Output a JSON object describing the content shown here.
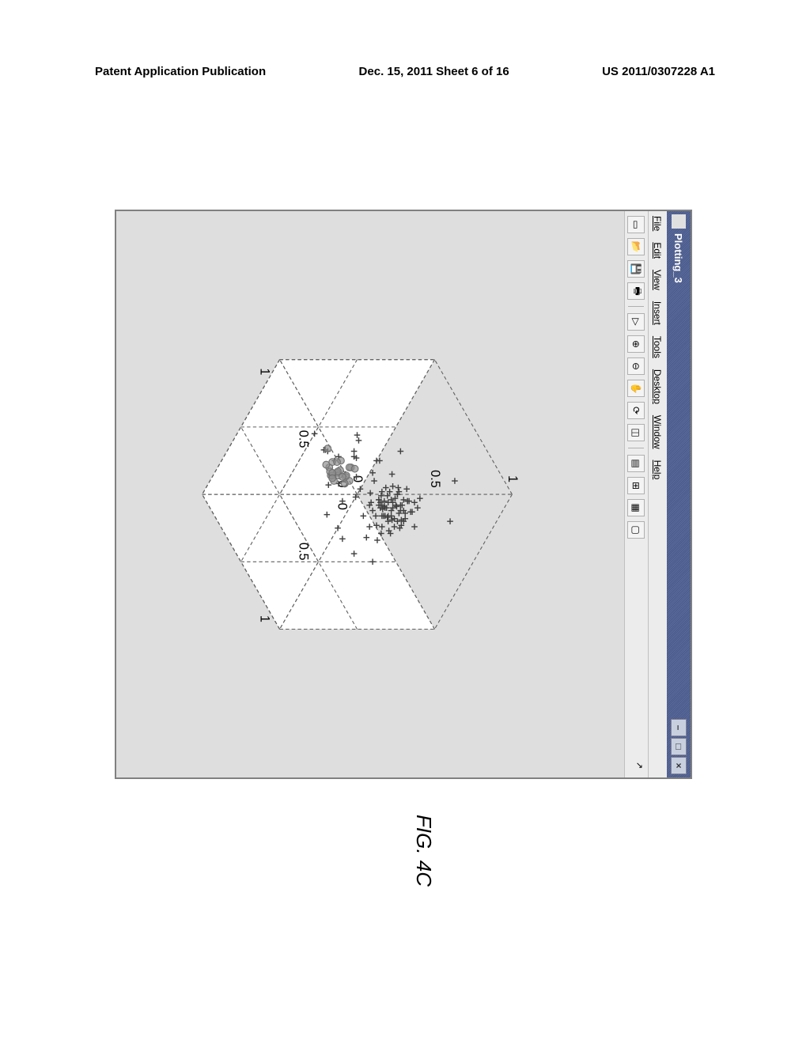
{
  "header": {
    "left": "Patent Application Publication",
    "center": "Dec. 15, 2011  Sheet 6 of 16",
    "right": "US 2011/0307228 A1"
  },
  "window": {
    "title": "Plotting_3",
    "menus": [
      "File",
      "Edit",
      "View",
      "Insert",
      "Tools",
      "Desktop",
      "Window",
      "Help"
    ],
    "win_buttons": {
      "min": "–",
      "max": "□",
      "close": "×"
    },
    "toolbar_icons": [
      {
        "name": "new-icon",
        "glyph": "▭"
      },
      {
        "name": "open-icon",
        "glyph": "📂"
      },
      {
        "name": "save-icon",
        "glyph": "💾"
      },
      {
        "name": "print-icon",
        "glyph": "🖶"
      },
      {
        "name": "pointer-icon",
        "glyph": "▷"
      },
      {
        "name": "zoom-in-icon",
        "glyph": "⊕"
      },
      {
        "name": "zoom-out-icon",
        "glyph": "⊖"
      },
      {
        "name": "pan-icon",
        "glyph": "✋"
      },
      {
        "name": "rotate-icon",
        "glyph": "⟳"
      },
      {
        "name": "datacursor-icon",
        "glyph": "◫"
      },
      {
        "name": "colorbar-icon",
        "glyph": "▤"
      },
      {
        "name": "legend-icon",
        "glyph": "⊞"
      },
      {
        "name": "axes-icon",
        "glyph": "▦"
      },
      {
        "name": "subplot-icon",
        "glyph": "▢"
      }
    ]
  },
  "plot": {
    "type": "scatter3d",
    "axes": {
      "x": {
        "lim": [
          0,
          1
        ],
        "ticks": [
          0,
          0.5,
          1
        ],
        "tick_labels": [
          "0",
          "0.5",
          "1"
        ]
      },
      "y": {
        "lim": [
          0,
          1
        ],
        "ticks": [
          0,
          0.5,
          1
        ],
        "tick_labels": [
          "0",
          "0.5",
          "1"
        ]
      },
      "z": {
        "lim": [
          0,
          1
        ],
        "ticks": [
          0,
          0.5,
          1
        ],
        "tick_labels": [
          "0",
          "0.5",
          "1"
        ]
      }
    },
    "grid_color": "#606060",
    "background_color": "#dedede",
    "face_color": "#ffffff",
    "series": [
      {
        "name": "crosses",
        "marker": "plus",
        "color": "#404040",
        "size": 7,
        "points": [
          [
            0.55,
            0.35,
            0.75
          ],
          [
            0.6,
            0.4,
            0.7
          ],
          [
            0.5,
            0.45,
            0.8
          ],
          [
            0.65,
            0.38,
            0.72
          ],
          [
            0.58,
            0.5,
            0.68
          ],
          [
            0.62,
            0.42,
            0.78
          ],
          [
            0.48,
            0.48,
            0.74
          ],
          [
            0.7,
            0.36,
            0.66
          ],
          [
            0.53,
            0.55,
            0.7
          ],
          [
            0.57,
            0.33,
            0.82
          ],
          [
            0.45,
            0.4,
            0.76
          ],
          [
            0.68,
            0.44,
            0.64
          ],
          [
            0.52,
            0.52,
            0.78
          ],
          [
            0.63,
            0.47,
            0.72
          ],
          [
            0.47,
            0.38,
            0.68
          ],
          [
            0.59,
            0.58,
            0.74
          ],
          [
            0.66,
            0.5,
            0.7
          ],
          [
            0.5,
            0.6,
            0.66
          ],
          [
            0.55,
            0.42,
            0.84
          ],
          [
            0.72,
            0.4,
            0.62
          ],
          [
            0.44,
            0.46,
            0.72
          ],
          [
            0.61,
            0.36,
            0.76
          ],
          [
            0.56,
            0.48,
            0.8
          ],
          [
            0.49,
            0.54,
            0.7
          ],
          [
            0.64,
            0.52,
            0.68
          ],
          [
            0.58,
            0.45,
            0.86
          ],
          [
            0.67,
            0.38,
            0.74
          ],
          [
            0.51,
            0.42,
            0.64
          ],
          [
            0.6,
            0.56,
            0.72
          ],
          [
            0.53,
            0.5,
            0.76
          ],
          [
            0.46,
            0.36,
            0.8
          ],
          [
            0.69,
            0.46,
            0.7
          ],
          [
            0.54,
            0.4,
            0.78
          ],
          [
            0.62,
            0.54,
            0.66
          ],
          [
            0.48,
            0.52,
            0.82
          ],
          [
            0.57,
            0.38,
            0.7
          ],
          [
            0.65,
            0.48,
            0.76
          ],
          [
            0.5,
            0.44,
            0.84
          ],
          [
            0.59,
            0.6,
            0.68
          ],
          [
            0.71,
            0.42,
            0.72
          ],
          [
            0.45,
            0.5,
            0.74
          ],
          [
            0.63,
            0.4,
            0.8
          ],
          [
            0.56,
            0.46,
            0.66
          ],
          [
            0.52,
            0.58,
            0.78
          ],
          [
            0.68,
            0.52,
            0.64
          ],
          [
            0.47,
            0.44,
            0.86
          ],
          [
            0.61,
            0.5,
            0.72
          ],
          [
            0.55,
            0.36,
            0.74
          ],
          [
            0.64,
            0.58,
            0.7
          ],
          [
            0.49,
            0.48,
            0.68
          ],
          [
            0.3,
            0.55,
            0.55
          ],
          [
            0.35,
            0.62,
            0.48
          ],
          [
            0.4,
            0.68,
            0.42
          ],
          [
            0.28,
            0.72,
            0.5
          ],
          [
            0.33,
            0.58,
            0.6
          ],
          [
            0.42,
            0.75,
            0.38
          ],
          [
            0.25,
            0.65,
            0.46
          ],
          [
            0.38,
            0.7,
            0.52
          ],
          [
            0.32,
            0.6,
            0.44
          ],
          [
            0.45,
            0.78,
            0.4
          ],
          [
            0.55,
            0.7,
            0.55
          ],
          [
            0.5,
            0.75,
            0.48
          ],
          [
            0.6,
            0.68,
            0.52
          ],
          [
            0.48,
            0.8,
            0.45
          ],
          [
            0.65,
            0.72,
            0.5
          ],
          [
            0.2,
            0.3,
            0.88
          ],
          [
            0.75,
            0.25,
            0.6
          ],
          [
            0.8,
            0.55,
            0.55
          ],
          [
            0.4,
            0.2,
            0.9
          ],
          [
            0.35,
            0.8,
            0.3
          ],
          [
            0.7,
            0.65,
            0.58
          ],
          [
            0.58,
            0.62,
            0.62
          ],
          [
            0.52,
            0.65,
            0.58
          ],
          [
            0.46,
            0.62,
            0.64
          ],
          [
            0.62,
            0.6,
            0.6
          ],
          [
            0.54,
            0.44,
            0.72
          ],
          [
            0.58,
            0.46,
            0.74
          ],
          [
            0.56,
            0.42,
            0.76
          ],
          [
            0.6,
            0.44,
            0.7
          ],
          [
            0.52,
            0.48,
            0.72
          ],
          [
            0.57,
            0.47,
            0.71
          ],
          [
            0.59,
            0.43,
            0.73
          ],
          [
            0.55,
            0.49,
            0.75
          ],
          [
            0.61,
            0.45,
            0.69
          ],
          [
            0.53,
            0.41,
            0.77
          ],
          [
            0.56,
            0.5,
            0.73
          ],
          [
            0.58,
            0.48,
            0.71
          ],
          [
            0.54,
            0.46,
            0.79
          ],
          [
            0.6,
            0.42,
            0.75
          ],
          [
            0.52,
            0.44,
            0.73
          ],
          [
            0.5,
            0.38,
            0.72
          ],
          [
            0.62,
            0.46,
            0.74
          ],
          [
            0.48,
            0.5,
            0.7
          ],
          [
            0.64,
            0.4,
            0.76
          ],
          [
            0.56,
            0.52,
            0.68
          ],
          [
            0.58,
            0.4,
            0.8
          ],
          [
            0.54,
            0.48,
            0.66
          ],
          [
            0.6,
            0.52,
            0.72
          ],
          [
            0.5,
            0.46,
            0.78
          ],
          [
            0.66,
            0.42,
            0.7
          ],
          [
            0.35,
            0.3,
            0.65
          ],
          [
            0.25,
            0.4,
            0.55
          ],
          [
            0.3,
            0.25,
            0.45
          ],
          [
            0.75,
            0.6,
            0.48
          ],
          [
            0.78,
            0.45,
            0.52
          ],
          [
            0.18,
            0.5,
            0.62
          ],
          [
            0.82,
            0.38,
            0.58
          ]
        ]
      },
      {
        "name": "circles",
        "marker": "circle",
        "color": "#707070",
        "fill": "#909090",
        "size": 8,
        "points": [
          [
            0.42,
            0.6,
            0.4
          ],
          [
            0.45,
            0.58,
            0.44
          ],
          [
            0.48,
            0.62,
            0.38
          ],
          [
            0.4,
            0.65,
            0.42
          ],
          [
            0.46,
            0.56,
            0.46
          ],
          [
            0.44,
            0.64,
            0.36
          ],
          [
            0.5,
            0.6,
            0.4
          ],
          [
            0.38,
            0.58,
            0.44
          ],
          [
            0.47,
            0.63,
            0.42
          ],
          [
            0.43,
            0.57,
            0.38
          ],
          [
            0.49,
            0.66,
            0.4
          ],
          [
            0.41,
            0.61,
            0.46
          ],
          [
            0.45,
            0.59,
            0.36
          ],
          [
            0.48,
            0.65,
            0.44
          ],
          [
            0.42,
            0.56,
            0.42
          ],
          [
            0.46,
            0.62,
            0.38
          ],
          [
            0.44,
            0.68,
            0.4
          ],
          [
            0.5,
            0.58,
            0.46
          ],
          [
            0.39,
            0.63,
            0.38
          ],
          [
            0.47,
            0.6,
            0.44
          ],
          [
            0.36,
            0.7,
            0.34
          ],
          [
            0.52,
            0.64,
            0.42
          ],
          [
            0.4,
            0.59,
            0.48
          ],
          [
            0.45,
            0.67,
            0.36
          ]
        ]
      }
    ]
  },
  "figure_label": "FIG. 4C"
}
